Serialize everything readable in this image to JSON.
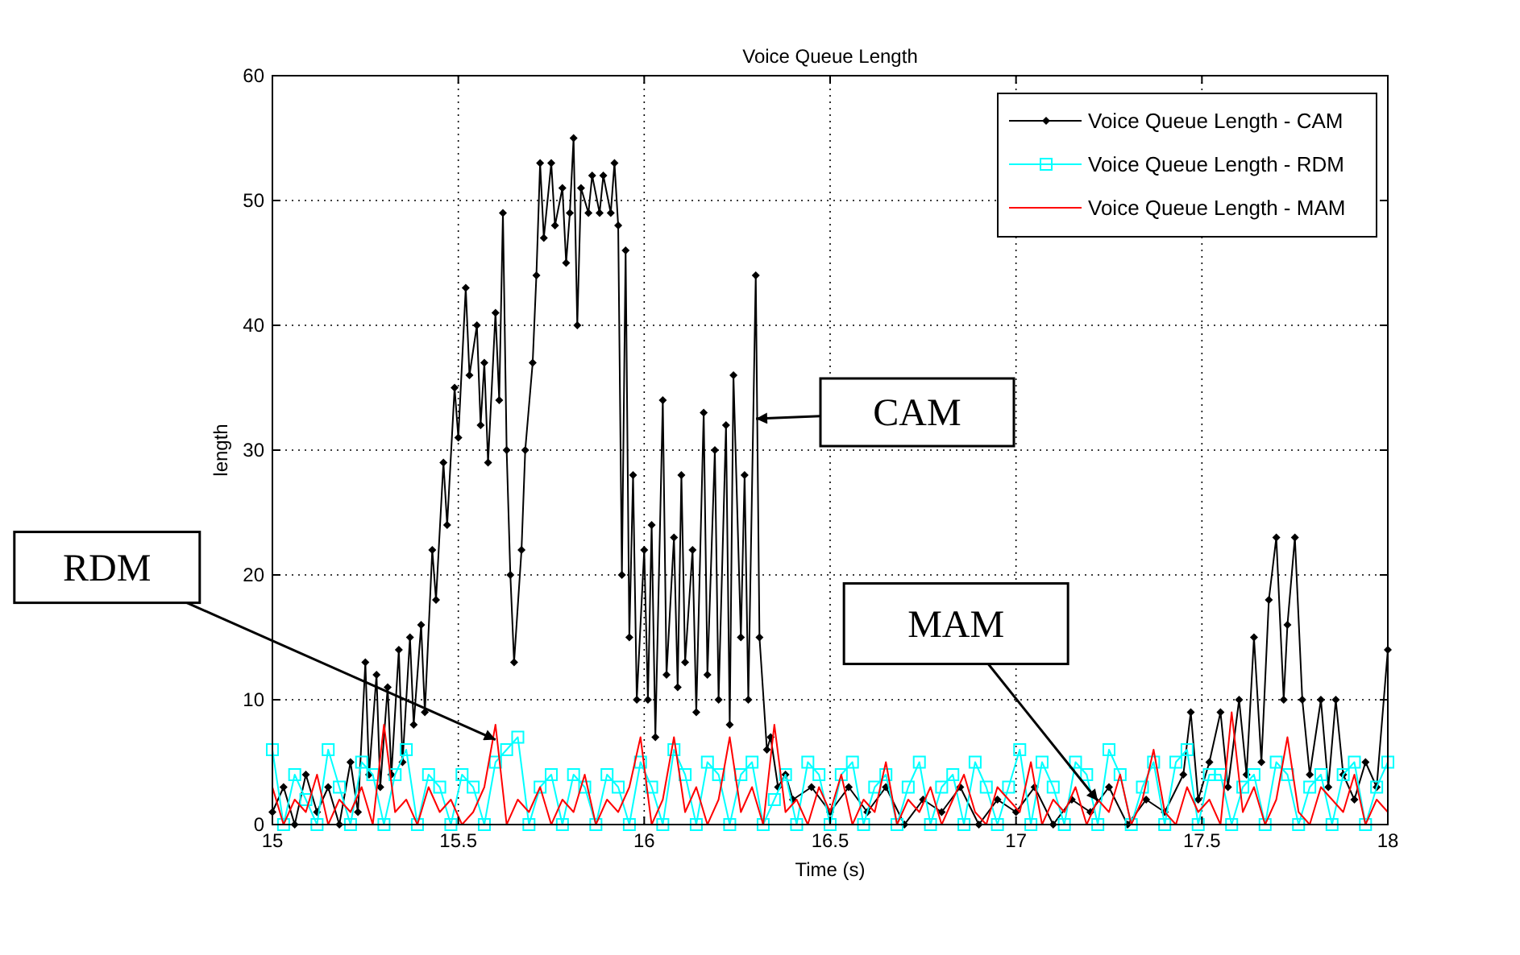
{
  "chart_data": {
    "type": "line",
    "title": "Voice Queue Length",
    "xlabel": "Time (s)",
    "ylabel": "length",
    "xlim": [
      15,
      18
    ],
    "xticks": [
      15,
      15.5,
      16,
      16.5,
      17,
      17.5,
      18
    ],
    "ylim": [
      0,
      60
    ],
    "yticks": [
      0,
      10,
      20,
      30,
      40,
      50,
      60
    ],
    "grid": true,
    "legend": "top right",
    "series": [
      {
        "name": "Voice Queue Length - CAM",
        "color": "#000000",
        "marker": "diamond",
        "x": [
          15,
          15.03,
          15.06,
          15.09,
          15.12,
          15.15,
          15.18,
          15.21,
          15.23,
          15.25,
          15.26,
          15.28,
          15.29,
          15.31,
          15.32,
          15.34,
          15.35,
          15.37,
          15.38,
          15.4,
          15.41,
          15.43,
          15.44,
          15.46,
          15.47,
          15.49,
          15.5,
          15.52,
          15.53,
          15.55,
          15.56,
          15.57,
          15.58,
          15.6,
          15.61,
          15.62,
          15.63,
          15.64,
          15.65,
          15.67,
          15.68,
          15.7,
          15.71,
          15.72,
          15.73,
          15.75,
          15.76,
          15.78,
          15.79,
          15.8,
          15.81,
          15.82,
          15.83,
          15.85,
          15.86,
          15.88,
          15.89,
          15.91,
          15.92,
          15.93,
          15.94,
          15.95,
          15.96,
          15.97,
          15.98,
          16,
          16.01,
          16.02,
          16.03,
          16.05,
          16.06,
          16.08,
          16.09,
          16.1,
          16.11,
          16.13,
          16.14,
          16.16,
          16.17,
          16.19,
          16.2,
          16.22,
          16.23,
          16.24,
          16.26,
          16.27,
          16.28,
          16.3,
          16.31,
          16.33,
          16.34,
          16.36,
          16.38,
          16.4,
          16.45,
          16.5,
          16.55,
          16.6,
          16.65,
          16.7,
          16.75,
          16.8,
          16.85,
          16.9,
          16.95,
          17,
          17.05,
          17.1,
          17.15,
          17.2,
          17.25,
          17.3,
          17.35,
          17.4,
          17.45,
          17.47,
          17.49,
          17.52,
          17.55,
          17.57,
          17.6,
          17.62,
          17.64,
          17.66,
          17.68,
          17.7,
          17.72,
          17.73,
          17.75,
          17.77,
          17.79,
          17.82,
          17.84,
          17.86,
          17.88,
          17.91,
          17.94,
          17.97,
          18
        ],
        "values": [
          1,
          3,
          0,
          4,
          1,
          3,
          0,
          5,
          1,
          13,
          4,
          12,
          3,
          11,
          4,
          14,
          5,
          15,
          8,
          16,
          9,
          22,
          18,
          29,
          24,
          35,
          31,
          43,
          36,
          40,
          32,
          37,
          29,
          41,
          34,
          49,
          30,
          20,
          13,
          22,
          30,
          37,
          44,
          53,
          47,
          53,
          48,
          51,
          45,
          49,
          55,
          40,
          51,
          49,
          52,
          49,
          52,
          49,
          53,
          48,
          20,
          46,
          15,
          28,
          10,
          22,
          10,
          24,
          7,
          34,
          12,
          23,
          11,
          28,
          13,
          22,
          9,
          33,
          12,
          30,
          10,
          32,
          8,
          36,
          15,
          28,
          10,
          44,
          15,
          6,
          7,
          3,
          4,
          2,
          3,
          1,
          3,
          1,
          3,
          0,
          2,
          1,
          3,
          0,
          2,
          1,
          3,
          0,
          2,
          1,
          3,
          0,
          2,
          1,
          4,
          9,
          2,
          5,
          9,
          3,
          10,
          4,
          15,
          5,
          18,
          23,
          10,
          16,
          23,
          10,
          4,
          10,
          3,
          10,
          4,
          2,
          5,
          3,
          14
        ]
      },
      {
        "name": "Voice Queue Length - RDM",
        "color": "#00ffff",
        "marker": "square",
        "x": [
          15,
          15.03,
          15.06,
          15.09,
          15.12,
          15.15,
          15.18,
          15.21,
          15.24,
          15.27,
          15.3,
          15.33,
          15.36,
          15.39,
          15.42,
          15.45,
          15.48,
          15.51,
          15.54,
          15.57,
          15.6,
          15.63,
          15.66,
          15.69,
          15.72,
          15.75,
          15.78,
          15.81,
          15.84,
          15.87,
          15.9,
          15.93,
          15.96,
          15.99,
          16.02,
          16.05,
          16.08,
          16.11,
          16.14,
          16.17,
          16.2,
          16.23,
          16.26,
          16.29,
          16.32,
          16.35,
          16.38,
          16.41,
          16.44,
          16.47,
          16.5,
          16.53,
          16.56,
          16.59,
          16.62,
          16.65,
          16.68,
          16.71,
          16.74,
          16.77,
          16.8,
          16.83,
          16.86,
          16.89,
          16.92,
          16.95,
          16.98,
          17.01,
          17.04,
          17.07,
          17.1,
          17.13,
          17.16,
          17.19,
          17.22,
          17.25,
          17.28,
          17.31,
          17.34,
          17.37,
          17.4,
          17.43,
          17.46,
          17.49,
          17.52,
          17.55,
          17.58,
          17.61,
          17.64,
          17.67,
          17.7,
          17.73,
          17.76,
          17.79,
          17.82,
          17.85,
          17.88,
          17.91,
          17.94,
          17.97,
          18
        ],
        "values": [
          6,
          0,
          4,
          2,
          0,
          6,
          3,
          0,
          5,
          4,
          0,
          4,
          6,
          0,
          4,
          3,
          0,
          4,
          3,
          0,
          5,
          6,
          7,
          0,
          3,
          4,
          0,
          4,
          3,
          0,
          4,
          3,
          0,
          5,
          3,
          0,
          6,
          4,
          0,
          5,
          4,
          0,
          4,
          5,
          0,
          2,
          4,
          0,
          5,
          4,
          0,
          4,
          5,
          0,
          3,
          4,
          0,
          3,
          5,
          0,
          3,
          4,
          0,
          5,
          3,
          0,
          3,
          6,
          0,
          5,
          3,
          0,
          5,
          4,
          0,
          6,
          4,
          0,
          3,
          5,
          0,
          5,
          6,
          0,
          4,
          4,
          0,
          3,
          4,
          0,
          5,
          4,
          0,
          3,
          4,
          0,
          4,
          5,
          0,
          3,
          5
        ]
      },
      {
        "name": "Voice Queue Length - MAM",
        "color": "#ff0000",
        "marker": "none",
        "x": [
          15,
          15.03,
          15.06,
          15.09,
          15.12,
          15.15,
          15.18,
          15.21,
          15.24,
          15.27,
          15.3,
          15.33,
          15.36,
          15.39,
          15.42,
          15.45,
          15.48,
          15.51,
          15.54,
          15.57,
          15.6,
          15.63,
          15.66,
          15.69,
          15.72,
          15.75,
          15.78,
          15.81,
          15.84,
          15.87,
          15.9,
          15.93,
          15.96,
          15.99,
          16.02,
          16.05,
          16.08,
          16.11,
          16.14,
          16.17,
          16.2,
          16.23,
          16.26,
          16.29,
          16.32,
          16.35,
          16.38,
          16.41,
          16.44,
          16.47,
          16.5,
          16.53,
          16.56,
          16.59,
          16.62,
          16.65,
          16.68,
          16.71,
          16.74,
          16.77,
          16.8,
          16.83,
          16.86,
          16.89,
          16.92,
          16.95,
          16.98,
          17.01,
          17.04,
          17.07,
          17.1,
          17.13,
          17.16,
          17.19,
          17.22,
          17.25,
          17.28,
          17.31,
          17.34,
          17.37,
          17.4,
          17.43,
          17.46,
          17.49,
          17.52,
          17.55,
          17.58,
          17.61,
          17.64,
          17.67,
          17.7,
          17.73,
          17.76,
          17.79,
          17.82,
          17.85,
          17.88,
          17.91,
          17.94,
          17.97,
          18
        ],
        "values": [
          3,
          0,
          2,
          1,
          4,
          0,
          2,
          1,
          3,
          0,
          8,
          1,
          2,
          0,
          3,
          1,
          2,
          0,
          1,
          3,
          8,
          0,
          2,
          1,
          3,
          0,
          2,
          1,
          4,
          0,
          2,
          1,
          3,
          7,
          0,
          2,
          7,
          1,
          3,
          0,
          2,
          7,
          1,
          3,
          0,
          8,
          1,
          2,
          0,
          3,
          1,
          4,
          0,
          2,
          1,
          5,
          0,
          2,
          1,
          3,
          0,
          2,
          4,
          1,
          0,
          3,
          2,
          1,
          5,
          0,
          2,
          1,
          3,
          0,
          2,
          1,
          4,
          0,
          2,
          6,
          1,
          0,
          3,
          1,
          2,
          0,
          9,
          1,
          3,
          0,
          2,
          7,
          1,
          0,
          3,
          2,
          1,
          4,
          0,
          2,
          1
        ]
      }
    ],
    "annotations": [
      "CAM",
      {
        "text": "RDM",
        "x": 15.6,
        "y": 6.8
      },
      {
        "text": "MAM",
        "x": 17.22,
        "y": 1.9
      }
    ]
  }
}
